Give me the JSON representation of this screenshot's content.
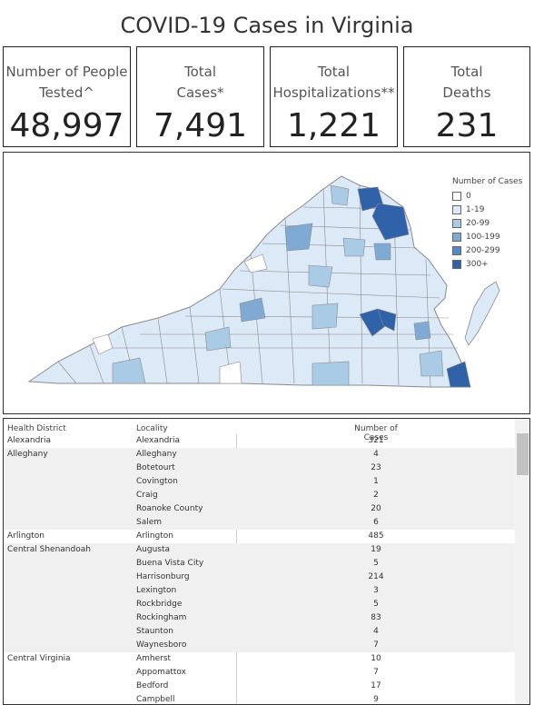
{
  "title": "COVID-19 Cases in Virginia",
  "kpis": [
    {
      "label_line1": "Number of People",
      "label_line2": "Tested^",
      "value": "48,997"
    },
    {
      "label_line1": "Total",
      "label_line2": "Cases*",
      "value": "7,491"
    },
    {
      "label_line1": "Total",
      "label_line2": "Hospitalizations**",
      "value": "1,221"
    },
    {
      "label_line1": "Total",
      "label_line2": "Deaths",
      "value": "231"
    }
  ],
  "legend": {
    "title": "Number of Cases",
    "items": [
      {
        "label": "0",
        "color": "#ffffff"
      },
      {
        "label": "1-19",
        "color": "#dce9f6"
      },
      {
        "label": "20-99",
        "color": "#aacbe6"
      },
      {
        "label": "100-199",
        "color": "#7eaad4"
      },
      {
        "label": "200-299",
        "color": "#5688c4"
      },
      {
        "label": "300+",
        "color": "#2f62a8"
      }
    ]
  },
  "table": {
    "headers": {
      "district": "Health District",
      "locality": "Locality",
      "cases": "Number of Cases"
    },
    "rows": [
      {
        "district": "Alexandria",
        "locality": "Alexandria",
        "cases": "321"
      },
      {
        "district": "Alleghany",
        "locality": "Alleghany",
        "cases": "4"
      },
      {
        "district": "",
        "locality": "Botetourt",
        "cases": "23"
      },
      {
        "district": "",
        "locality": "Covington",
        "cases": "1"
      },
      {
        "district": "",
        "locality": "Craig",
        "cases": "2"
      },
      {
        "district": "",
        "locality": "Roanoke County",
        "cases": "20"
      },
      {
        "district": "",
        "locality": "Salem",
        "cases": "6"
      },
      {
        "district": "Arlington",
        "locality": "Arlington",
        "cases": "485"
      },
      {
        "district": "Central Shenandoah",
        "locality": "Augusta",
        "cases": "19"
      },
      {
        "district": "",
        "locality": "Buena Vista City",
        "cases": "5"
      },
      {
        "district": "",
        "locality": "Harrisonburg",
        "cases": "214"
      },
      {
        "district": "",
        "locality": "Lexington",
        "cases": "3"
      },
      {
        "district": "",
        "locality": "Rockbridge",
        "cases": "5"
      },
      {
        "district": "",
        "locality": "Rockingham",
        "cases": "83"
      },
      {
        "district": "",
        "locality": "Staunton",
        "cases": "4"
      },
      {
        "district": "",
        "locality": "Waynesboro",
        "cases": "7"
      },
      {
        "district": "Central Virginia",
        "locality": "Amherst",
        "cases": "10"
      },
      {
        "district": "",
        "locality": "Appomattox",
        "cases": "7"
      },
      {
        "district": "",
        "locality": "Bedford",
        "cases": "17"
      },
      {
        "district": "",
        "locality": "Campbell",
        "cases": "9"
      }
    ]
  }
}
